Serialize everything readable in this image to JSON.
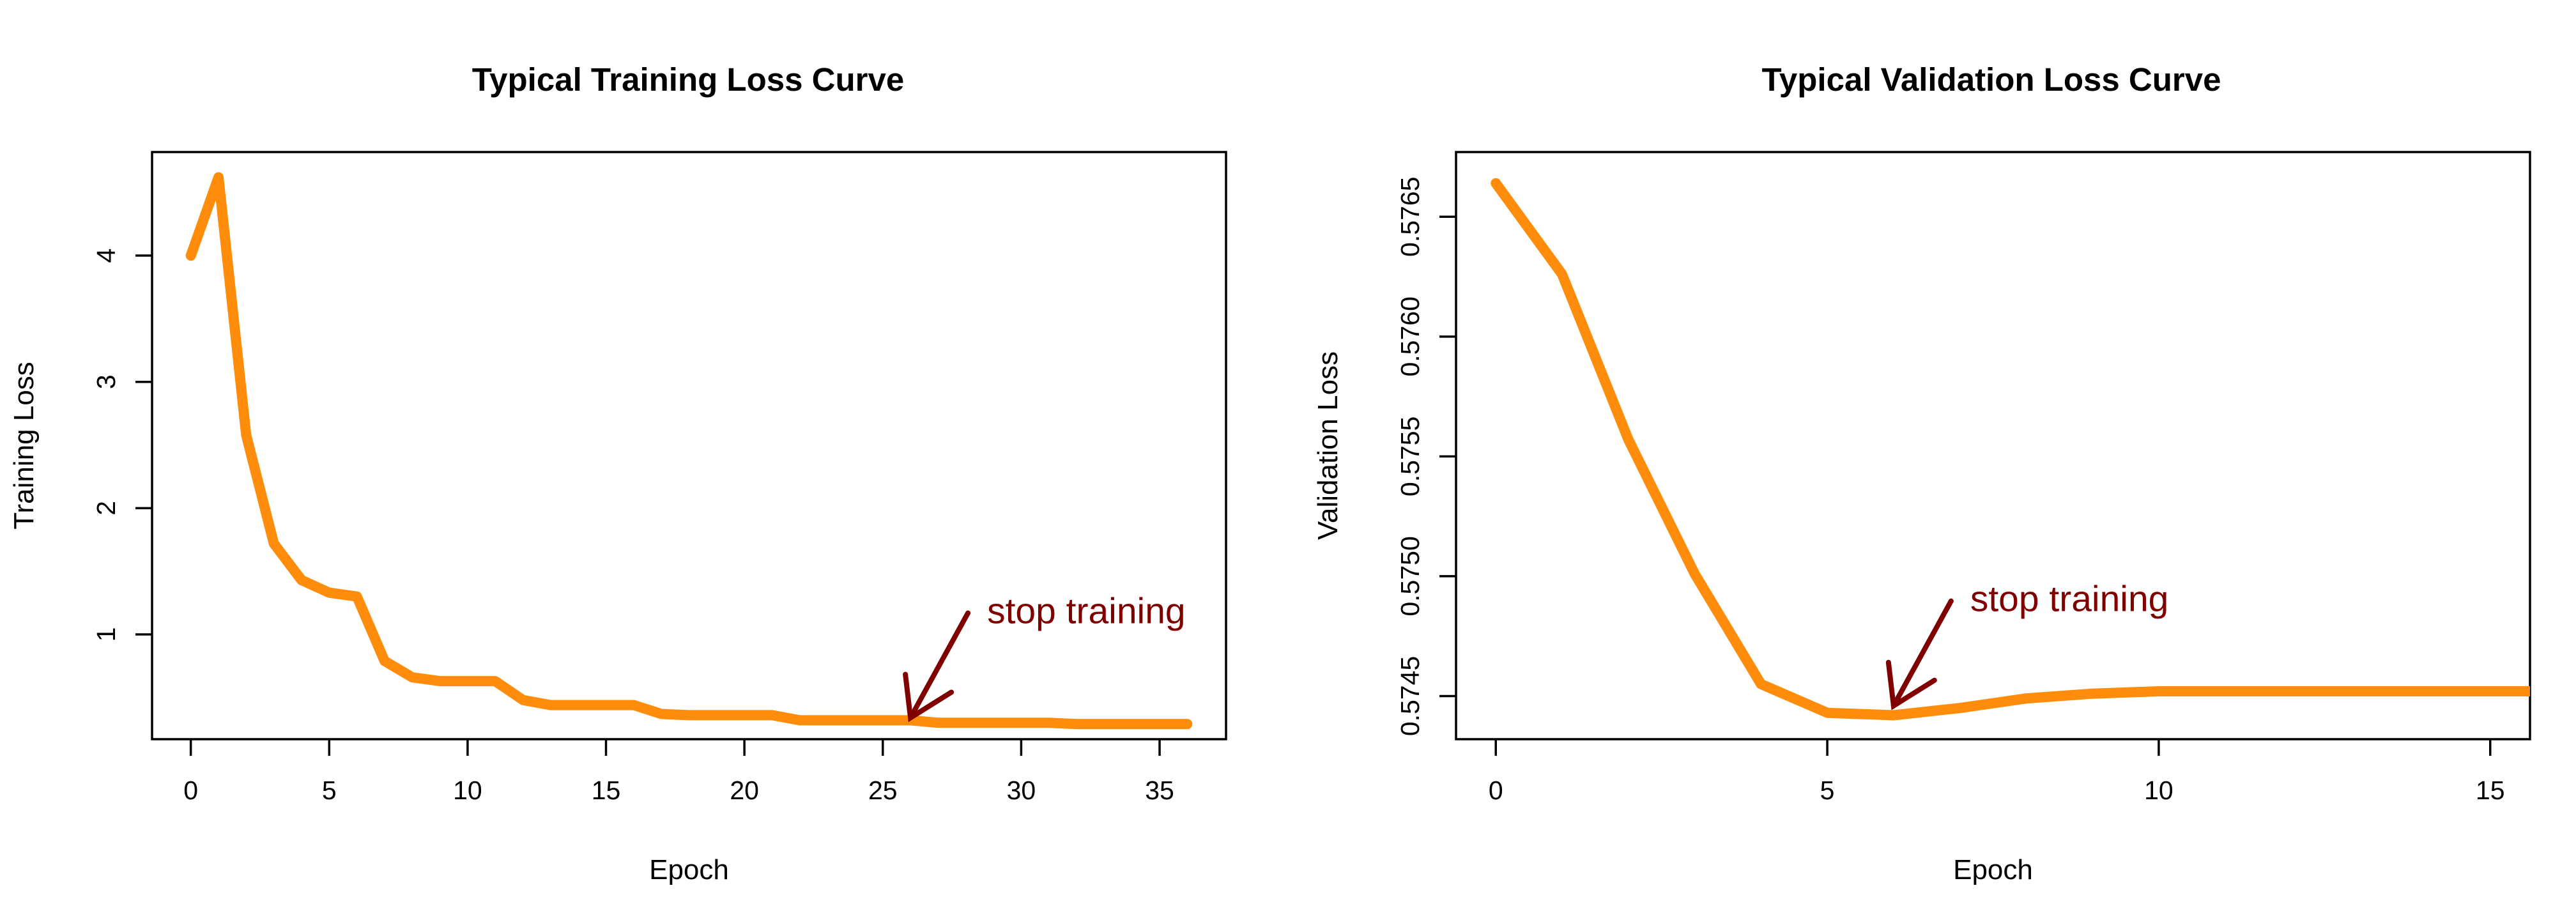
{
  "colors": {
    "line": "#FF8C0A",
    "annotation": "#800000"
  },
  "chart_data": [
    {
      "type": "line",
      "title": "Typical Training Loss Curve",
      "xlabel": "Epoch",
      "ylabel": "Training Loss",
      "xlim": [
        -1.4,
        37.4
      ],
      "ylim": [
        0.17,
        4.82
      ],
      "x_ticks": [
        0,
        5,
        10,
        15,
        20,
        25,
        30,
        35
      ],
      "y_ticks": [
        1,
        2,
        3,
        4
      ],
      "x": [
        0,
        1,
        2,
        3,
        4,
        5,
        6,
        7,
        8,
        9,
        10,
        11,
        12,
        13,
        14,
        15,
        16,
        17,
        18,
        19,
        20,
        21,
        22,
        23,
        24,
        25,
        26,
        27,
        28,
        29,
        30,
        31,
        32,
        33,
        34,
        35,
        36
      ],
      "values": [
        4.0,
        4.62,
        2.58,
        1.72,
        1.43,
        1.33,
        1.3,
        0.79,
        0.66,
        0.63,
        0.63,
        0.63,
        0.48,
        0.44,
        0.44,
        0.44,
        0.44,
        0.37,
        0.36,
        0.36,
        0.36,
        0.36,
        0.32,
        0.32,
        0.32,
        0.32,
        0.32,
        0.3,
        0.3,
        0.3,
        0.3,
        0.3,
        0.29,
        0.29,
        0.29,
        0.29,
        0.29
      ],
      "grid": false,
      "annotation": {
        "text": "stop training",
        "x": 26,
        "y": 0.36
      }
    },
    {
      "type": "line",
      "title": "Typical Validation Loss Curve",
      "xlabel": "Epoch",
      "ylabel": "Validation Loss",
      "xlim": [
        -0.6,
        15.6
      ],
      "ylim": [
        0.57432,
        0.57677
      ],
      "x_ticks": [
        0,
        5,
        10,
        15
      ],
      "y_ticks": [
        0.5745,
        0.575,
        0.5755,
        0.576,
        0.5765
      ],
      "y_tick_labels": [
        "0.5745",
        "0.5750",
        "0.5755",
        "0.5760",
        "0.5765"
      ],
      "x": [
        0,
        1,
        2,
        3,
        4,
        5,
        6,
        7,
        8,
        9,
        10,
        11,
        12,
        13,
        14,
        15,
        16
      ],
      "values": [
        0.57664,
        0.57626,
        0.57557,
        0.57501,
        0.57455,
        0.57443,
        0.57442,
        0.57445,
        0.57449,
        0.57451,
        0.57452,
        0.57452,
        0.57452,
        0.57452,
        0.57452,
        0.57452,
        0.57452
      ],
      "grid": false,
      "annotation": {
        "text": "stop training",
        "x": 6,
        "y": 0.57447
      }
    }
  ]
}
